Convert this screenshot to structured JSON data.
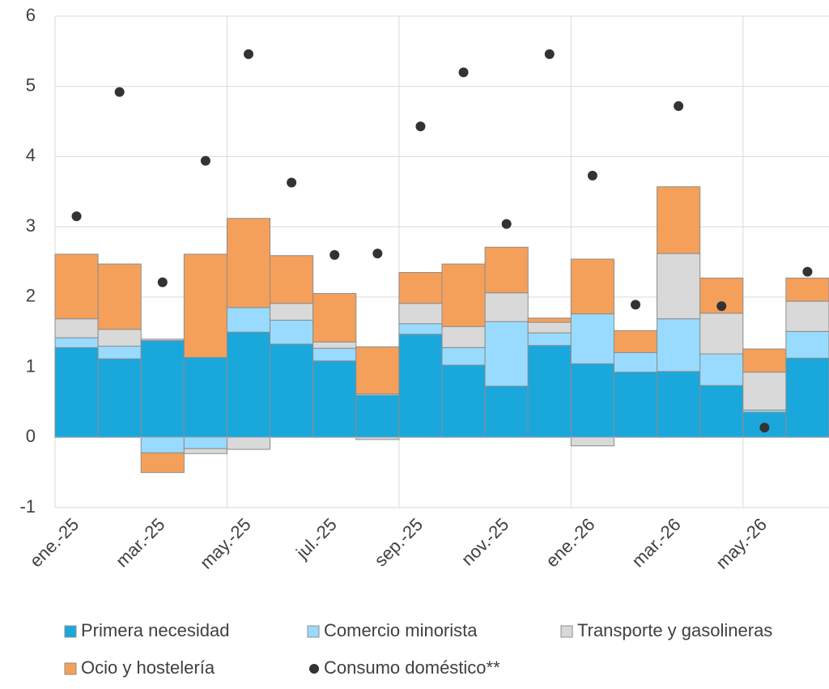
{
  "chart_data": {
    "type": "bar",
    "stacked": true,
    "categories": [
      "ene.-25",
      null,
      "mar.-25",
      null,
      "may.-25",
      null,
      "jul.-25",
      null,
      "sep.-25",
      null,
      "nov.-25",
      null,
      "ene.-26",
      null,
      "mar.-26",
      null,
      "may.-26",
      null
    ],
    "series": [
      {
        "name": "Primera necesidad",
        "color": "#1aa7dc",
        "values": [
          1.28,
          1.12,
          1.38,
          1.14,
          1.5,
          1.33,
          1.09,
          0.6,
          1.47,
          1.03,
          0.73,
          1.31,
          1.05,
          0.93,
          0.94,
          0.74,
          0.36,
          1.13
        ]
      },
      {
        "name": "Comercio minorista",
        "color": "#99dbff",
        "values": [
          0.14,
          0.18,
          -0.22,
          -0.16,
          0.35,
          0.34,
          0.18,
          0.02,
          0.15,
          0.25,
          0.92,
          0.18,
          0.71,
          0.28,
          0.75,
          0.45,
          0.03,
          0.38
        ]
      },
      {
        "name": "Transporte y gasolineras",
        "color": "#d9d9d9",
        "values": [
          0.27,
          0.24,
          0.02,
          -0.07,
          -0.17,
          0.24,
          0.09,
          -0.03,
          0.29,
          0.3,
          0.41,
          0.15,
          -0.12,
          0,
          0.93,
          0.58,
          0.54,
          0.43
        ]
      },
      {
        "name": "Ocio y hostelería",
        "color": "#f5a05a",
        "values": [
          0.92,
          0.93,
          -0.28,
          1.47,
          1.27,
          0.68,
          0.69,
          0.67,
          0.44,
          0.89,
          0.65,
          0.06,
          0.78,
          0.31,
          0.95,
          0.5,
          0.33,
          0.33
        ]
      },
      {
        "name": "Consumo doméstico**",
        "type": "scatter",
        "color": "#333333",
        "values": [
          3.15,
          4.92,
          2.21,
          3.94,
          5.46,
          3.63,
          2.6,
          2.62,
          4.43,
          5.2,
          3.04,
          5.46,
          3.73,
          1.89,
          4.72,
          1.87,
          0.14,
          2.36
        ]
      }
    ],
    "ylim": [
      -1,
      6
    ],
    "yticks": [
      -1,
      0,
      1,
      2,
      3,
      4,
      5,
      6
    ],
    "grid": true
  }
}
